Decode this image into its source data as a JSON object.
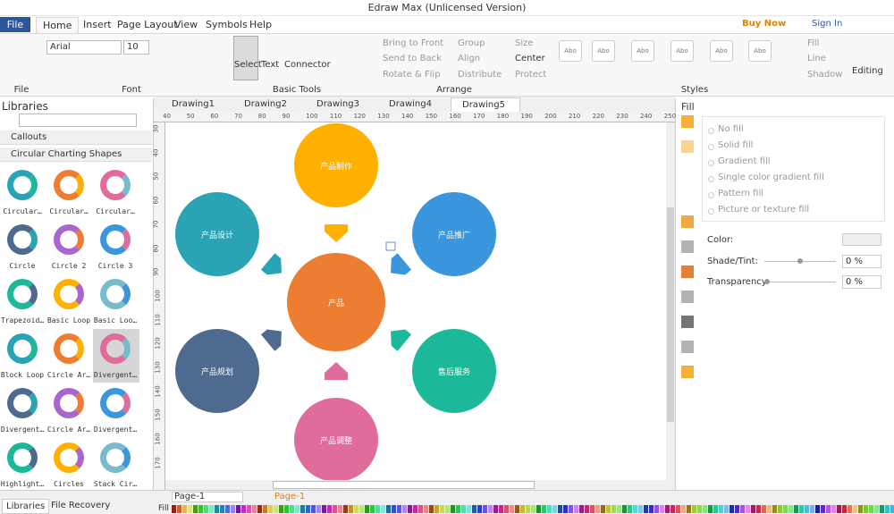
{
  "title_bar": {
    "title": "Edraw Max (Unlicensed Version)"
  },
  "menu": {
    "file": "File",
    "tabs": [
      "Home",
      "Insert",
      "Page Layout",
      "View",
      "Symbols",
      "Help"
    ],
    "buy_now": "Buy Now",
    "sign_in": "Sign In"
  },
  "ribbon": {
    "font_name": "Arial",
    "font_size": "10",
    "tools": [
      "Select",
      "Text",
      "Connector"
    ],
    "arrange": [
      "Bring to Front",
      "Send to Back",
      "Rotate & Flip",
      "Group",
      "Align",
      "Distribute",
      "Size",
      "Center",
      "Protect"
    ],
    "style_sample": "Abo",
    "style_options": [
      "Fill",
      "Line",
      "Shadow"
    ],
    "editing": "Editing",
    "groups": [
      "File",
      "Font",
      "Basic Tools",
      "Arrange",
      "Styles"
    ]
  },
  "libraries": {
    "title": "Libraries",
    "sections": [
      "Callouts",
      "Circular Charting Shapes"
    ],
    "shapes": [
      "Circular…",
      "Circular…",
      "Circular…",
      "Circle",
      "Circle 2",
      "Circle 3",
      "Trapezoid…",
      "Basic Loop",
      "Basic Loo…",
      "Block Loop",
      "Circle Ar…",
      "Divergent…",
      "Divergent…",
      "Circle Ar…",
      "Divergent…",
      "Highlight…",
      "Circles",
      "Stack Cir…"
    ],
    "tabs": [
      "Libraries",
      "File Recovery"
    ]
  },
  "documents": {
    "tabs": [
      "Drawing1",
      "Drawing2",
      "Drawing3",
      "Drawing4",
      "Drawing5"
    ]
  },
  "rulers": {
    "top": [
      40,
      50,
      60,
      70,
      80,
      90,
      100,
      110,
      120,
      130,
      140,
      150,
      160,
      170,
      180,
      190,
      200,
      210,
      220,
      230,
      240,
      250
    ],
    "left": [
      30,
      40,
      50,
      60,
      70,
      80,
      90,
      100,
      110,
      120,
      130,
      140,
      150,
      160,
      170
    ]
  },
  "diagram": {
    "center": {
      "label": "产品",
      "color": "#ed7d31"
    },
    "nodes": [
      {
        "label": "产品制作",
        "color": "#ffb000"
      },
      {
        "label": "产品推广",
        "color": "#3a96dd"
      },
      {
        "label": "售后服务",
        "color": "#1bb99a"
      },
      {
        "label": "产品调整",
        "color": "#e06c9b"
      },
      {
        "label": "产品规划",
        "color": "#4e6a8e"
      },
      {
        "label": "产品设计",
        "color": "#2aa3b5"
      }
    ]
  },
  "fill_panel": {
    "title": "Fill",
    "options": [
      "No fill",
      "Solid fill",
      "Gradient fill",
      "Single color gradient fill",
      "Pattern fill",
      "Picture or texture fill"
    ],
    "color_label": "Color:",
    "shade_label": "Shade/Tint:",
    "shade_value": "0 %",
    "transparency_label": "Transparency:",
    "transparency_value": "0 %"
  },
  "status_bar": {
    "page_tab": "Page-1",
    "active_page": "Page-1",
    "fill": "Fill"
  }
}
